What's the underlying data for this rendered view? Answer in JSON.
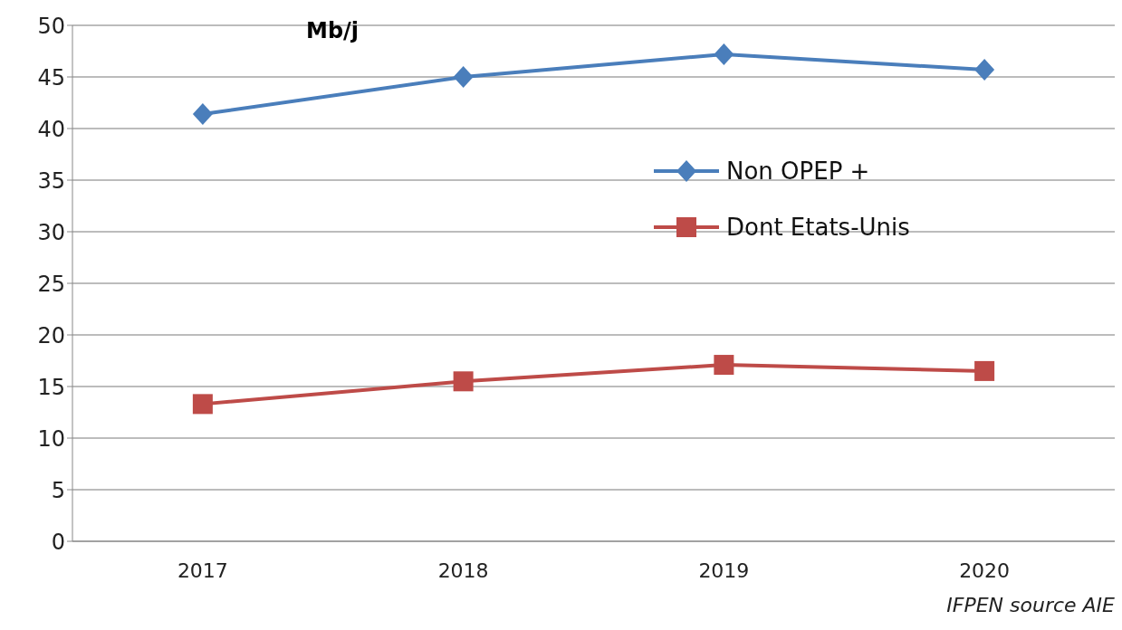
{
  "chart_data": {
    "type": "line",
    "ylabel": "Mb/j",
    "categories": [
      "2017",
      "2018",
      "2019",
      "2020"
    ],
    "series": [
      {
        "name": "Non OPEP +",
        "color": "#4a7ebb",
        "marker": "diamond",
        "values": [
          41.4,
          45.0,
          47.2,
          45.7
        ]
      },
      {
        "name": "Dont Etats-Unis",
        "color": "#be4b48",
        "marker": "square",
        "values": [
          13.3,
          15.5,
          17.1,
          16.5
        ]
      }
    ],
    "ylim": [
      0,
      50
    ],
    "yticks": [
      0,
      5,
      10,
      15,
      20,
      25,
      30,
      35,
      40,
      45,
      50
    ],
    "grid": "y",
    "legend": "right",
    "annotations": [
      "IFPEN source AIE"
    ]
  }
}
